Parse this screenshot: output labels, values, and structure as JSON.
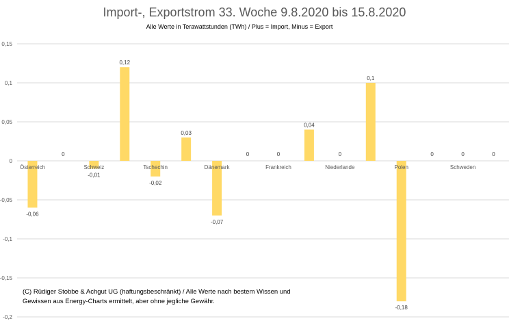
{
  "chart_data": {
    "type": "bar",
    "title": "Import-, Exportstrom 33. Woche 9.8.2020 bis 15.8.2020",
    "subtitle": "Alle Werte in Terawattstunden (TWh) / Plus = Import, Minus = Export",
    "xlabel": "",
    "ylabel": "",
    "ylim": [
      -0.2,
      0.15
    ],
    "yticks": [
      0.15,
      0.1,
      0.05,
      0,
      -0.05,
      -0.1,
      -0.15,
      -0.2
    ],
    "ytick_labels": [
      "0,15",
      "0,1",
      "0,05",
      "0",
      "-0,05",
      "-0,1",
      "-0,15",
      "-0,2"
    ],
    "grid": true,
    "categories": [
      "Österreich",
      "",
      "Schweiz",
      "",
      "Tschechin",
      "",
      "Dänemark",
      "",
      "Frankreich",
      "",
      "Niederlande",
      "",
      "Polen",
      "",
      "Schweden",
      ""
    ],
    "values": [
      -0.06,
      0,
      -0.01,
      0.12,
      -0.02,
      0.03,
      -0.07,
      0,
      0,
      0.04,
      0,
      0.1,
      -0.18,
      0,
      0,
      0
    ],
    "value_labels": [
      "-0,06",
      "0",
      "-0,01",
      "0,12",
      "-0,02",
      "0,03",
      "-0,07",
      "0",
      "0",
      "0,04",
      "0",
      "0,1",
      "-0,18",
      "0",
      "0",
      "0"
    ],
    "bar_color": "#FFD966"
  },
  "credit": "(C) Rüdiger Stobbe & Achgut UG (haftungsbeschränkt) / Alle Werte nach bestem Wissen und Gewissen aus Energy-Charts ermittelt, aber ohne jegliche Gewähr."
}
